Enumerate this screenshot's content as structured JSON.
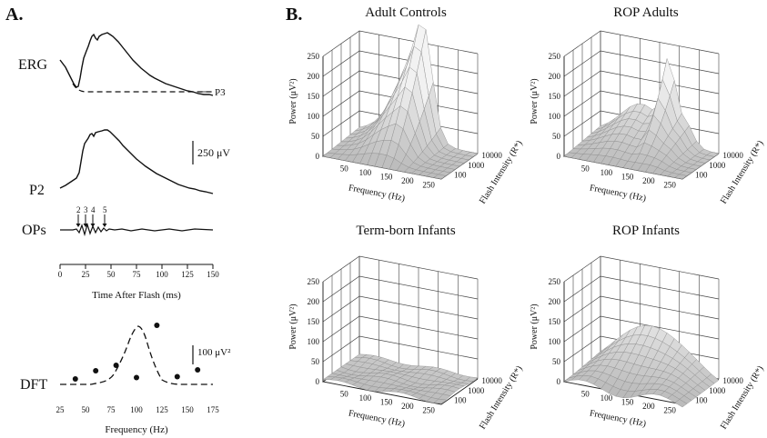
{
  "panel_a": {
    "label": "A.",
    "traces": {
      "erg": "ERG",
      "p3": "P3",
      "p2": "P2",
      "ops": "OPs",
      "dft": "DFT"
    },
    "scale_bar_uv": "250 μV",
    "scale_bar_power": "100 μV²",
    "op_markers": [
      "2",
      "3",
      "4",
      "5"
    ],
    "time_axis": {
      "label": "Time After Flash (ms)",
      "ticks": [
        "0",
        "25",
        "50",
        "75",
        "100",
        "125",
        "150"
      ]
    },
    "freq_axis": {
      "label": "Frequency (Hz)",
      "ticks": [
        "25",
        "50",
        "75",
        "100",
        "125",
        "150",
        "175"
      ]
    }
  },
  "panel_b": {
    "label": "B.",
    "plots": [
      {
        "title": "Adult Controls"
      },
      {
        "title": "ROP Adults"
      },
      {
        "title": "Term-born Infants"
      },
      {
        "title": "ROP Infants"
      }
    ],
    "z_label": "Power (μV²)",
    "z_ticks": [
      "0",
      "50",
      "100",
      "150",
      "200",
      "250"
    ],
    "x_label": "Frequency (Hz)",
    "x_ticks": [
      "50",
      "100",
      "150",
      "200",
      "250"
    ],
    "y_label": "Flash Intensity (R*)",
    "y_ticks": [
      "100",
      "1000",
      "10000"
    ]
  },
  "chart_data": [
    {
      "type": "scatter",
      "title": "DFT",
      "xlabel": "Frequency (Hz)",
      "ylabel": "",
      "xlim": [
        25,
        175
      ],
      "series": [
        {
          "values_x": [
            40,
            60,
            80,
            100,
            120,
            140,
            160
          ],
          "values_y": [
            12,
            30,
            42,
            15,
            130,
            17,
            32
          ]
        }
      ]
    }
  ]
}
